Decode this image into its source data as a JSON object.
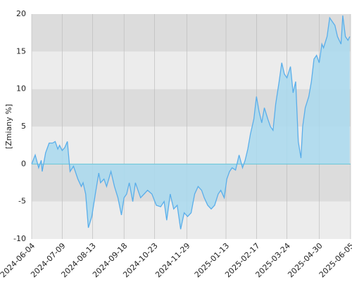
{
  "chart_data": {
    "type": "area",
    "y_label": "[Zmiany %]",
    "x": [
      "2024-06-04",
      "2024-06-08",
      "2024-06-12",
      "2024-06-15",
      "2024-06-16",
      "2024-06-20",
      "2024-06-24",
      "2024-06-28",
      "2024-07-01",
      "2024-07-04",
      "2024-07-06",
      "2024-07-09",
      "2024-07-12",
      "2024-07-15",
      "2024-07-18",
      "2024-07-22",
      "2024-07-27",
      "2024-07-31",
      "2024-08-02",
      "2024-08-05",
      "2024-08-08",
      "2024-08-12",
      "2024-08-16",
      "2024-08-20",
      "2024-08-22",
      "2024-08-26",
      "2024-08-29",
      "2024-09-03",
      "2024-09-07",
      "2024-09-11",
      "2024-09-15",
      "2024-09-18",
      "2024-09-21",
      "2024-09-24",
      "2024-09-28",
      "2024-10-01",
      "2024-10-04",
      "2024-10-07",
      "2024-10-11",
      "2024-10-15",
      "2024-10-20",
      "2024-10-25",
      "2024-10-30",
      "2024-11-03",
      "2024-11-06",
      "2024-11-10",
      "2024-11-14",
      "2024-11-18",
      "2024-11-22",
      "2024-11-26",
      "2024-11-30",
      "2024-12-04",
      "2024-12-08",
      "2024-12-12",
      "2024-12-16",
      "2024-12-19",
      "2024-12-23",
      "2024-12-27",
      "2024-12-31",
      "2025-01-04",
      "2025-01-07",
      "2025-01-11",
      "2025-01-14",
      "2025-01-17",
      "2025-01-20",
      "2025-01-24",
      "2025-01-28",
      "2025-02-01",
      "2025-02-04",
      "2025-02-07",
      "2025-02-10",
      "2025-02-14",
      "2025-02-17",
      "2025-02-20",
      "2025-02-23",
      "2025-02-26",
      "2025-03-02",
      "2025-03-05",
      "2025-03-08",
      "2025-03-11",
      "2025-03-15",
      "2025-03-18",
      "2025-03-21",
      "2025-03-24",
      "2025-03-28",
      "2025-03-31",
      "2025-04-03",
      "2025-04-06",
      "2025-04-09",
      "2025-04-11",
      "2025-04-14",
      "2025-04-18",
      "2025-04-21",
      "2025-04-24",
      "2025-04-27",
      "2025-04-30",
      "2025-05-03",
      "2025-05-05",
      "2025-05-09",
      "2025-05-12",
      "2025-05-15",
      "2025-05-18",
      "2025-05-21",
      "2025-05-25",
      "2025-05-27",
      "2025-05-30",
      "2025-06-02",
      "2025-06-04"
    ],
    "values": [
      0,
      1.2,
      -0.5,
      0.5,
      -1,
      1.5,
      2.8,
      2.8,
      3,
      2,
      2.5,
      1.8,
      2.2,
      3,
      -1,
      -0.3,
      -2,
      -3,
      -2.5,
      -4,
      -8.5,
      -7,
      -4,
      -1.2,
      -2.5,
      -2,
      -3,
      -1,
      -3,
      -4.5,
      -6.8,
      -4.5,
      -4,
      -2.5,
      -5,
      -2.5,
      -3.5,
      -4.5,
      -4,
      -3.5,
      -4,
      -5.5,
      -5.7,
      -5,
      -7.5,
      -4,
      -6,
      -5.5,
      -8.7,
      -6.5,
      -7,
      -6.5,
      -4,
      -3,
      -3.5,
      -4.5,
      -5.5,
      -6,
      -5.5,
      -4,
      -3.5,
      -4.5,
      -2,
      -1,
      -0.5,
      -0.8,
      1.2,
      -0.5,
      0.5,
      2,
      4,
      6,
      9,
      7,
      5.5,
      7.5,
      6,
      5,
      4.5,
      8,
      11,
      13.5,
      12,
      11.5,
      13,
      9.5,
      11,
      3,
      0.8,
      5,
      7.5,
      9,
      11,
      14,
      14.5,
      13.5,
      16,
      15.5,
      17,
      19.5,
      19,
      18.5,
      17,
      16,
      19.8,
      17,
      16.5,
      17
    ],
    "line_color": "#5aaeea",
    "fill_color": "#a9d9ef",
    "zero_line_color": "#66c6d8",
    "band_colors": [
      "#ececec",
      "#dcdcdc"
    ],
    "xlim": [
      "2024-06-04",
      "2025-06-05"
    ],
    "xticks": [
      "2024-06-04",
      "2024-07-09",
      "2024-08-13",
      "2024-09-18",
      "2024-10-23",
      "2024-11-29",
      "2025-01-13",
      "2025-02-17",
      "2025-03-24",
      "2025-04-30",
      "2025-06-05"
    ],
    "ylim": [
      -10,
      20
    ],
    "yticks": [
      -10,
      -5,
      0,
      5,
      10,
      15,
      20
    ],
    "grid": true
  }
}
